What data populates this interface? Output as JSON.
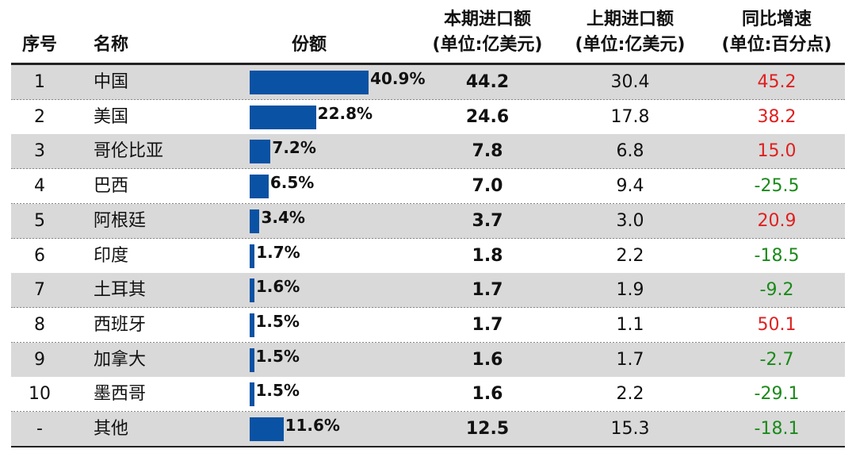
{
  "table": {
    "header": {
      "index": "序号",
      "name": "名称",
      "share": "份额",
      "current": [
        "本期进口额",
        "(单位:亿美元)"
      ],
      "previous": [
        "上期进口额",
        "(单位:亿美元)"
      ],
      "growth": [
        "同比增速",
        "(单位:百分点)"
      ]
    },
    "rows": [
      {
        "index": "1",
        "name": "中国",
        "share": {
          "value": 40.9,
          "label": "40.9%"
        },
        "current": "44.2",
        "previous": "30.4",
        "growth": "45.2"
      },
      {
        "index": "2",
        "name": "美国",
        "share": {
          "value": 22.8,
          "label": "22.8%"
        },
        "current": "24.6",
        "previous": "17.8",
        "growth": "38.2"
      },
      {
        "index": "3",
        "name": "哥伦比亚",
        "share": {
          "value": 7.2,
          "label": "7.2%"
        },
        "current": "7.8",
        "previous": "6.8",
        "growth": "15.0"
      },
      {
        "index": "4",
        "name": "巴西",
        "share": {
          "value": 6.5,
          "label": "6.5%"
        },
        "current": "7.0",
        "previous": "9.4",
        "growth": "-25.5"
      },
      {
        "index": "5",
        "name": "阿根廷",
        "share": {
          "value": 3.4,
          "label": "3.4%"
        },
        "current": "3.7",
        "previous": "3.0",
        "growth": "20.9"
      },
      {
        "index": "6",
        "name": "印度",
        "share": {
          "value": 1.7,
          "label": "1.7%"
        },
        "current": "1.8",
        "previous": "2.2",
        "growth": "-18.5"
      },
      {
        "index": "7",
        "name": "土耳其",
        "share": {
          "value": 1.6,
          "label": "1.6%"
        },
        "current": "1.7",
        "previous": "1.9",
        "growth": "-9.2"
      },
      {
        "index": "8",
        "name": "西班牙",
        "share": {
          "value": 1.5,
          "label": "1.5%"
        },
        "current": "1.7",
        "previous": "1.1",
        "growth": "50.1"
      },
      {
        "index": "9",
        "name": "加拿大",
        "share": {
          "value": 1.5,
          "label": "1.5%"
        },
        "current": "1.6",
        "previous": "1.7",
        "growth": "-2.7"
      },
      {
        "index": "10",
        "name": "墨西哥",
        "share": {
          "value": 1.5,
          "label": "1.5%"
        },
        "current": "1.6",
        "previous": "2.2",
        "growth": "-29.1"
      },
      {
        "index": "-",
        "name": "其他",
        "share": {
          "value": 11.6,
          "label": "11.6%"
        },
        "current": "12.5",
        "previous": "15.3",
        "growth": "-18.1"
      }
    ]
  }
}
